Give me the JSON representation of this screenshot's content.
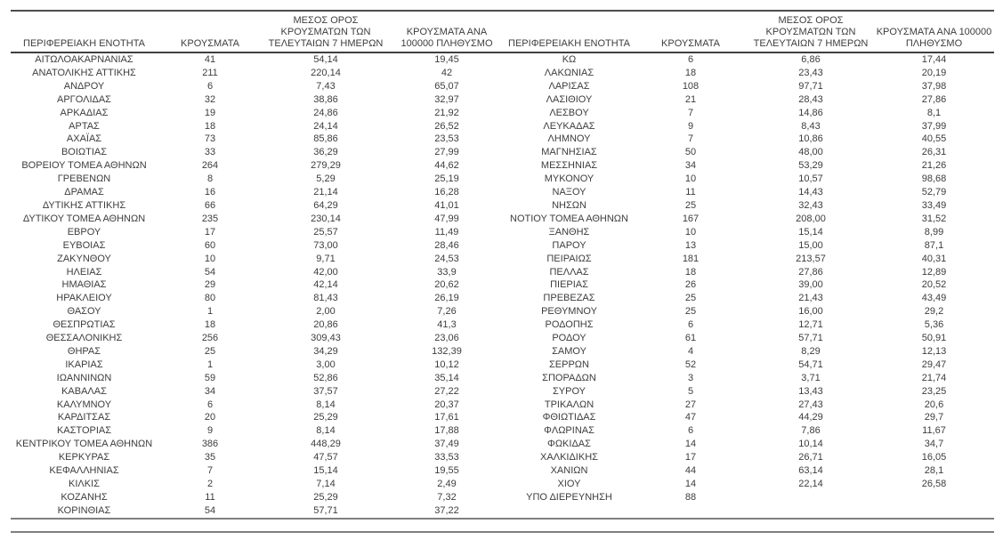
{
  "table": {
    "headers": [
      "ΠΕΡΙΦΕΡΕΙΑΚΗ ΕΝΟΤΗΤΑ",
      "ΚΡΟΥΣΜΑΤΑ",
      "ΜΕΣΟΣ ΟΡΟΣ ΚΡΟΥΣΜΑΤΩΝ ΤΩΝ ΤΕΛΕΥΤΑΙΩΝ 7 ΗΜΕΡΩΝ",
      "ΚΡΟΥΣΜΑΤΑ ΑΝΑ 100000 ΠΛΗΘΥΣΜΟ"
    ],
    "left_rows": [
      [
        "ΑΙΤΩΛΟΑΚΑΡΝΑΝΙΑΣ",
        "41",
        "54,14",
        "19,45"
      ],
      [
        "ΑΝΑΤΟΛΙΚΗΣ ΑΤΤΙΚΗΣ",
        "211",
        "220,14",
        "42"
      ],
      [
        "ΑΝΔΡΟΥ",
        "6",
        "7,43",
        "65,07"
      ],
      [
        "ΑΡΓΟΛΙΔΑΣ",
        "32",
        "38,86",
        "32,97"
      ],
      [
        "ΑΡΚΑΔΙΑΣ",
        "19",
        "24,86",
        "21,92"
      ],
      [
        "ΑΡΤΑΣ",
        "18",
        "24,14",
        "26,52"
      ],
      [
        "ΑΧΑΪΑΣ",
        "73",
        "85,86",
        "23,53"
      ],
      [
        "ΒΟΙΩΤΙΑΣ",
        "33",
        "36,29",
        "27,99"
      ],
      [
        "ΒΟΡΕΙΟΥ ΤΟΜΕΑ ΑΘΗΝΩΝ",
        "264",
        "279,29",
        "44,62"
      ],
      [
        "ΓΡΕΒΕΝΩΝ",
        "8",
        "5,29",
        "25,19"
      ],
      [
        "ΔΡΑΜΑΣ",
        "16",
        "21,14",
        "16,28"
      ],
      [
        "ΔΥΤΙΚΗΣ ΑΤΤΙΚΗΣ",
        "66",
        "64,29",
        "41,01"
      ],
      [
        "ΔΥΤΙΚΟΥ ΤΟΜΕΑ ΑΘΗΝΩΝ",
        "235",
        "230,14",
        "47,99"
      ],
      [
        "ΕΒΡΟΥ",
        "17",
        "25,57",
        "11,49"
      ],
      [
        "ΕΥΒΟΙΑΣ",
        "60",
        "73,00",
        "28,46"
      ],
      [
        "ΖΑΚΥΝΘΟΥ",
        "10",
        "9,71",
        "24,53"
      ],
      [
        "ΗΛΕΙΑΣ",
        "54",
        "42,00",
        "33,9"
      ],
      [
        "ΗΜΑΘΙΑΣ",
        "29",
        "42,14",
        "20,62"
      ],
      [
        "ΗΡΑΚΛΕΙΟΥ",
        "80",
        "81,43",
        "26,19"
      ],
      [
        "ΘΑΣΟΥ",
        "1",
        "2,00",
        "7,26"
      ],
      [
        "ΘΕΣΠΡΩΤΙΑΣ",
        "18",
        "20,86",
        "41,3"
      ],
      [
        "ΘΕΣΣΑΛΟΝΙΚΗΣ",
        "256",
        "309,43",
        "23,06"
      ],
      [
        "ΘΗΡΑΣ",
        "25",
        "34,29",
        "132,39"
      ],
      [
        "ΙΚΑΡΙΑΣ",
        "1",
        "3,00",
        "10,12"
      ],
      [
        "ΙΩΑΝΝΙΝΩΝ",
        "59",
        "52,86",
        "35,14"
      ],
      [
        "ΚΑΒΑΛΑΣ",
        "34",
        "37,57",
        "27,22"
      ],
      [
        "ΚΑΛΥΜΝΟΥ",
        "6",
        "8,14",
        "20,37"
      ],
      [
        "ΚΑΡΔΙΤΣΑΣ",
        "20",
        "25,29",
        "17,61"
      ],
      [
        "ΚΑΣΤΟΡΙΑΣ",
        "9",
        "8,14",
        "17,88"
      ],
      [
        "ΚΕΝΤΡΙΚΟΥ ΤΟΜΕΑ ΑΘΗΝΩΝ",
        "386",
        "448,29",
        "37,49"
      ],
      [
        "ΚΕΡΚΥΡΑΣ",
        "35",
        "47,57",
        "33,53"
      ],
      [
        "ΚΕΦΑΛΛΗΝΙΑΣ",
        "7",
        "15,14",
        "19,55"
      ],
      [
        "ΚΙΛΚΙΣ",
        "2",
        "7,14",
        "2,49"
      ],
      [
        "ΚΟΖΑΝΗΣ",
        "11",
        "25,29",
        "7,32"
      ],
      [
        "ΚΟΡΙΝΘΙΑΣ",
        "54",
        "57,71",
        "37,22"
      ]
    ],
    "right_rows": [
      [
        "ΚΩ",
        "6",
        "6,86",
        "17,44"
      ],
      [
        "ΛΑΚΩΝΙΑΣ",
        "18",
        "23,43",
        "20,19"
      ],
      [
        "ΛΑΡΙΣΑΣ",
        "108",
        "97,71",
        "37,98"
      ],
      [
        "ΛΑΣΙΘΙΟΥ",
        "21",
        "28,43",
        "27,86"
      ],
      [
        "ΛΕΣΒΟΥ",
        "7",
        "14,86",
        "8,1"
      ],
      [
        "ΛΕΥΚΑΔΑΣ",
        "9",
        "8,43",
        "37,99"
      ],
      [
        "ΛΗΜΝΟΥ",
        "7",
        "10,86",
        "40,55"
      ],
      [
        "ΜΑΓΝΗΣΙΑΣ",
        "50",
        "48,00",
        "26,31"
      ],
      [
        "ΜΕΣΣΗΝΙΑΣ",
        "34",
        "53,29",
        "21,26"
      ],
      [
        "ΜΥΚΟΝΟΥ",
        "10",
        "10,57",
        "98,68"
      ],
      [
        "ΝΑΞΟΥ",
        "11",
        "14,43",
        "52,79"
      ],
      [
        "ΝΗΣΩΝ",
        "25",
        "32,43",
        "33,49"
      ],
      [
        "ΝΟΤΙΟΥ ΤΟΜΕΑ ΑΘΗΝΩΝ",
        "167",
        "208,00",
        "31,52"
      ],
      [
        "ΞΑΝΘΗΣ",
        "10",
        "15,14",
        "8,99"
      ],
      [
        "ΠΑΡΟΥ",
        "13",
        "15,00",
        "87,1"
      ],
      [
        "ΠΕΙΡΑΙΩΣ",
        "181",
        "213,57",
        "40,31"
      ],
      [
        "ΠΕΛΛΑΣ",
        "18",
        "27,86",
        "12,89"
      ],
      [
        "ΠΙΕΡΙΑΣ",
        "26",
        "39,00",
        "20,52"
      ],
      [
        "ΠΡΕΒΕΖΑΣ",
        "25",
        "21,43",
        "43,49"
      ],
      [
        "ΡΕΘΥΜΝΟΥ",
        "25",
        "16,00",
        "29,2"
      ],
      [
        "ΡΟΔΟΠΗΣ",
        "6",
        "12,71",
        "5,36"
      ],
      [
        "ΡΟΔΟΥ",
        "61",
        "57,71",
        "50,91"
      ],
      [
        "ΣΑΜΟΥ",
        "4",
        "8,29",
        "12,13"
      ],
      [
        "ΣΕΡΡΩΝ",
        "52",
        "54,71",
        "29,47"
      ],
      [
        "ΣΠΟΡΑΔΩΝ",
        "3",
        "3,71",
        "21,74"
      ],
      [
        "ΣΥΡΟΥ",
        "5",
        "13,43",
        "23,25"
      ],
      [
        "ΤΡΙΚΑΛΩΝ",
        "27",
        "27,43",
        "20,6"
      ],
      [
        "ΦΘΙΩΤΙΔΑΣ",
        "47",
        "44,29",
        "29,7"
      ],
      [
        "ΦΛΩΡΙΝΑΣ",
        "6",
        "7,86",
        "11,67"
      ],
      [
        "ΦΩΚΙΔΑΣ",
        "14",
        "10,14",
        "34,7"
      ],
      [
        "ΧΑΛΚΙΔΙΚΗΣ",
        "17",
        "26,71",
        "16,05"
      ],
      [
        "ΧΑΝΙΩΝ",
        "44",
        "63,14",
        "28,1"
      ],
      [
        "ΧΙΟΥ",
        "14",
        "22,14",
        "26,58"
      ],
      [
        "ΥΠΟ ΔΙΕΡΕΥΝΗΣΗ",
        "88",
        "",
        ""
      ]
    ],
    "colors": {
      "text": "#3d3d3d",
      "rule_dark": "#3f3f3f",
      "rule_gray": "#7f7f7f"
    }
  }
}
